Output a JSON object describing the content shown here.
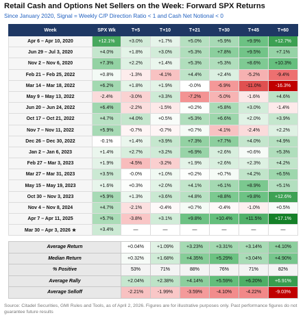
{
  "header": {
    "title": "Retail Cash and Options Net Sellers on the Week: Forward SPX Returns",
    "subtitle": "Since January 2020, Signal = Weekly C/P Direction Ratio < 1 and Cash Net Notional < 0"
  },
  "table": {
    "header": [
      "Week",
      "SPX Wk",
      "T+5",
      "T+10",
      "T+21",
      "T+30",
      "T+45",
      "T+60"
    ],
    "rows": [
      [
        "Apr 6 – Apr 10, 2020",
        "+12.1%",
        "+3.0%",
        "+1.7%",
        "+5.0%",
        "+5.9%",
        "+9.9%",
        "+12.7%"
      ],
      [
        "Jun 29 – Jul 3, 2020",
        "+4.0%",
        "+1.8%",
        "+3.0%",
        "+5.3%",
        "+7.8%",
        "+9.5%",
        "+7.1%"
      ],
      [
        "Nov 2 – Nov 6, 2020",
        "+7.3%",
        "+2.2%",
        "+1.4%",
        "+5.3%",
        "+5.3%",
        "+8.6%",
        "+10.3%"
      ],
      [
        "Feb 21 – Feb 25, 2022",
        "+0.8%",
        "-1.3%",
        "-4.1%",
        "+4.4%",
        "+2.4%",
        "-5.2%",
        "-9.4%"
      ],
      [
        "Mar 14 – Mar 18, 2022",
        "+6.2%",
        "+1.8%",
        "+1.9%",
        "-0.0%",
        "-6.9%",
        "-11.0%",
        "-16.3%"
      ],
      [
        "May 9 – May 13, 2022",
        "-2.4%",
        "-3.0%",
        "+3.3%",
        "-7.2%",
        "-5.0%",
        "-1.6%",
        "+4.6%"
      ],
      [
        "Jun 20 – Jun 24, 2022",
        "+6.4%",
        "-2.2%",
        "-1.5%",
        "+0.2%",
        "+5.8%",
        "+3.0%",
        "-1.4%"
      ],
      [
        "Oct 17 – Oct 21, 2022",
        "+4.7%",
        "+4.0%",
        "+0.5%",
        "+5.3%",
        "+6.6%",
        "+2.0%",
        "+3.9%"
      ],
      [
        "Nov 7 – Nov 11, 2022",
        "+5.9%",
        "-0.7%",
        "-0.7%",
        "+0.7%",
        "-4.1%",
        "-2.4%",
        "+2.2%"
      ],
      [
        "Dec 26 – Dec 30, 2022",
        "-0.1%",
        "+1.4%",
        "+3.9%",
        "+7.3%",
        "+7.7%",
        "+4.0%",
        "+4.9%"
      ],
      [
        "Jan 2 – Jan 6, 2023",
        "+1.4%",
        "+2.7%",
        "+3.2%",
        "+6.9%",
        "+2.6%",
        "+0.6%",
        "+5.3%"
      ],
      [
        "Feb 27 – Mar 3, 2023",
        "+1.9%",
        "-4.5%",
        "-3.2%",
        "+1.9%",
        "+2.6%",
        "+2.3%",
        "+4.2%"
      ],
      [
        "Mar 27 – Mar 31, 2023",
        "+3.5%",
        "-0.0%",
        "+1.0%",
        "+0.2%",
        "+0.7%",
        "+4.2%",
        "+6.5%"
      ],
      [
        "May 15 – May 19, 2023",
        "+1.6%",
        "+0.3%",
        "+2.0%",
        "+4.1%",
        "+6.1%",
        "+8.9%",
        "+5.1%"
      ],
      [
        "Oct 30 – Nov 3, 2023",
        "+5.9%",
        "+1.3%",
        "+3.6%",
        "+4.8%",
        "+8.8%",
        "+9.8%",
        "+12.6%"
      ],
      [
        "Nov 4 – Nov 8, 2024",
        "+4.7%",
        "-2.1%",
        "-0.4%",
        "+0.7%",
        "-0.4%",
        "-1.0%",
        "+0.5%"
      ],
      [
        "Apr 7 – Apr 11, 2025",
        "+5.7%",
        "-3.8%",
        "+3.1%",
        "+9.8%",
        "+10.4%",
        "+11.5%",
        "+17.1%"
      ],
      [
        "Mar 30 – Apr 3, 2026 ★",
        "+3.4%",
        "—",
        "—",
        "—",
        "—",
        "—",
        "—"
      ]
    ]
  },
  "summary": {
    "rows": [
      [
        "Average Return",
        "+0.04%",
        "+1.09%",
        "+3.23%",
        "+3.31%",
        "+3.14%",
        "+4.10%"
      ],
      [
        "Median Return",
        "+0.32%",
        "+1.68%",
        "+4.35%",
        "+5.29%",
        "+3.04%",
        "+4.90%"
      ],
      [
        "% Positive",
        "53%",
        "71%",
        "88%",
        "76%",
        "71%",
        "82%"
      ],
      [
        "Average Rally",
        "+2.04%",
        "+2.38%",
        "+4.14%",
        "+5.59%",
        "+6.20%",
        "+6.91%"
      ],
      [
        "Average Selloff",
        "-2.21%",
        "-1.99%",
        "-3.59%",
        "-4.10%",
        "-4.22%",
        "-9.03%"
      ]
    ]
  },
  "footer": {
    "source": "Source: Citadel Securities, GMI Rules and Tools, as of April 2, 2026. Figures are for illustrative purposes only. Past performance figures do not guarantee future results"
  }
}
